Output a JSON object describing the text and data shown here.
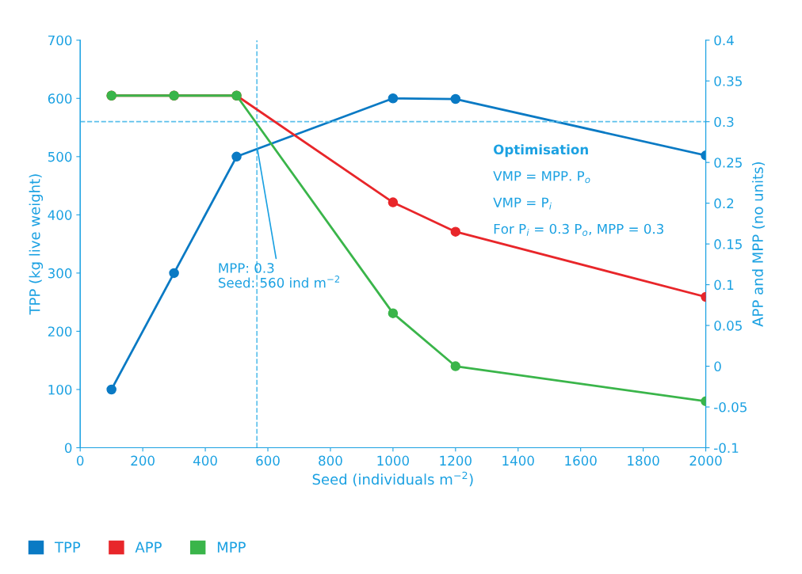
{
  "chart_data": {
    "type": "line",
    "xlabel": "Seed (individuals m$^{−2}$)",
    "ylabel": "TPP (kg live weight)",
    "y2label": "APP and MPP (no units)",
    "xlim": [
      0,
      2000
    ],
    "xticks": [
      0,
      200,
      400,
      600,
      800,
      1000,
      1200,
      1400,
      1600,
      1800,
      2000
    ],
    "ylim": [
      0,
      700
    ],
    "yticks": [
      0,
      100,
      200,
      300,
      400,
      500,
      600,
      700
    ],
    "y2lim": [
      -0.1,
      0.4
    ],
    "y2ticks": [
      -0.1,
      -0.05,
      0,
      0.05,
      0.1,
      0.15,
      0.2,
      0.25,
      0.3,
      0.35,
      0.4
    ],
    "x": [
      100,
      300,
      500,
      1000,
      1200,
      2000
    ],
    "series": [
      {
        "name": "TPP",
        "color": "#0a7ac4",
        "values": [
          100,
          300,
          500,
          600,
          599,
          502
        ]
      },
      {
        "name": "APP",
        "color": "#e8262a",
        "axis": "y2",
        "values": [
          0.332,
          0.332,
          0.332,
          0.201,
          0.165,
          0.085
        ]
      },
      {
        "name": "MPP",
        "color": "#3ab54a",
        "axis": "y2",
        "values": [
          0.332,
          0.332,
          0.332,
          0.065,
          0.0,
          -0.043
        ]
      }
    ],
    "ref_lines": [
      {
        "axis": "x",
        "value": 565,
        "color": "#5bc0eb",
        "line_style": "dashed"
      },
      {
        "axis": "y2",
        "value": 0.3,
        "color": "#5bc0eb",
        "line_style": "dashed"
      }
    ],
    "annotations": [
      {
        "text": "MPP: 0.3\nSeed: 560 ind m$^{−2}$",
        "x": 565,
        "y": 518
      },
      "Optimisation",
      "VMP = MPP. P$_{o}$",
      "VMP = P$_{i}$",
      "For P$_{i}$ = 0.3 P$_{o}$, MPP = 0.3"
    ],
    "marker": "circle",
    "line_style": "solid",
    "grid": false,
    "legend": "bottom left"
  }
}
